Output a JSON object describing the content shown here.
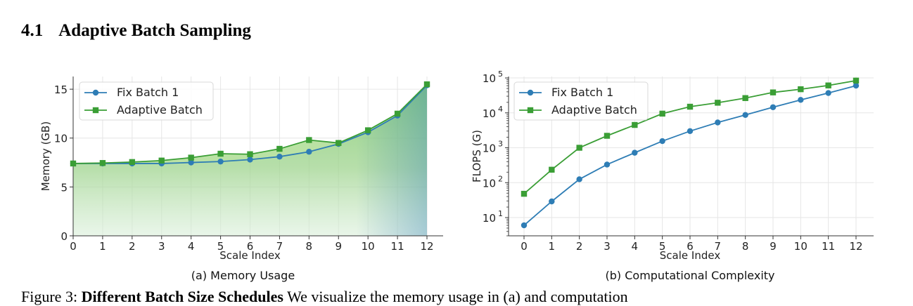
{
  "section": {
    "number": "4.1",
    "title": "Adaptive Batch Sampling"
  },
  "figure_caption": {
    "prefix": "Figure 3:",
    "bold": "Different Batch Size Schedules",
    "rest": "We visualize the memory usage in (a) and computation"
  },
  "colors": {
    "fix": "#2e7db5",
    "adaptive": "#3a9e35",
    "grid": "#e6e6e6"
  },
  "chart_data": [
    {
      "type": "area",
      "caption": "(a) Memory Usage",
      "xlabel": "Scale Index",
      "ylabel": "Memory (GB)",
      "xlim": [
        0,
        12
      ],
      "ylim": [
        0,
        16.3
      ],
      "x": [
        0,
        1,
        2,
        3,
        4,
        5,
        6,
        7,
        8,
        9,
        10,
        11,
        12
      ],
      "yticks": [
        0,
        5,
        10,
        15
      ],
      "ytick_labels": [
        "0",
        "5",
        "10",
        "15"
      ],
      "xtick_labels": [
        "0",
        "1",
        "2",
        "3",
        "4",
        "5",
        "6",
        "7",
        "8",
        "9",
        "10",
        "11",
        "12"
      ],
      "grid": true,
      "legend": "top-left",
      "series": [
        {
          "name": "Fix Batch 1",
          "marker": "circle",
          "values": [
            7.4,
            7.4,
            7.4,
            7.4,
            7.5,
            7.6,
            7.8,
            8.1,
            8.6,
            9.4,
            10.6,
            12.3,
            15.4
          ]
        },
        {
          "name": "Adaptive Batch",
          "marker": "square",
          "values": [
            7.4,
            7.45,
            7.55,
            7.7,
            8.0,
            8.4,
            8.35,
            8.9,
            9.8,
            9.5,
            10.8,
            12.5,
            15.5
          ]
        }
      ]
    },
    {
      "type": "line",
      "caption": "(b) Computational Complexity",
      "xlabel": "Scale Index",
      "ylabel": "FLOPS (G)",
      "xlim": [
        0,
        12
      ],
      "yscale": "log",
      "ylim": [
        3,
        110000
      ],
      "x": [
        0,
        1,
        2,
        3,
        4,
        5,
        6,
        7,
        8,
        9,
        10,
        11,
        12
      ],
      "yticks": [
        10,
        100,
        1000,
        10000,
        100000
      ],
      "ytick_exponents": [
        "1",
        "2",
        "3",
        "4",
        "5"
      ],
      "ytick_base": "10",
      "xtick_labels": [
        "0",
        "1",
        "2",
        "3",
        "4",
        "5",
        "6",
        "7",
        "8",
        "9",
        "10",
        "11",
        "12"
      ],
      "grid": true,
      "legend": "top-left",
      "series": [
        {
          "name": "Fix Batch 1",
          "marker": "circle",
          "values": [
            6,
            29,
            125,
            330,
            720,
            1550,
            3000,
            5300,
            8700,
            14500,
            23500,
            37000,
            60000
          ]
        },
        {
          "name": "Adaptive Batch",
          "marker": "square",
          "values": [
            48,
            235,
            1000,
            2200,
            4500,
            9500,
            15000,
            19500,
            26500,
            38500,
            47500,
            61000,
            84000
          ]
        }
      ]
    }
  ]
}
